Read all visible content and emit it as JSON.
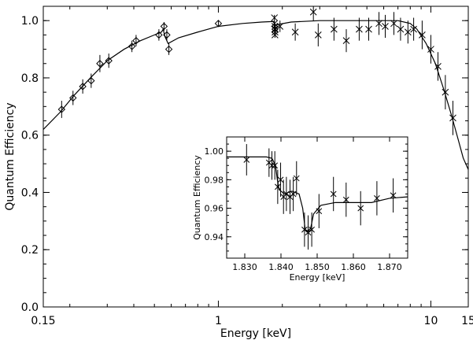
{
  "chart_data": [
    {
      "type": "scatter",
      "id": "main",
      "xlabel": "Energy [keV]",
      "ylabel": "Quantum Efficiency",
      "xscale": "log",
      "xlim": [
        0.15,
        15
      ],
      "ylim": [
        0.0,
        1.05
      ],
      "x_ticks": [
        0.15,
        1,
        10,
        15
      ],
      "x_tick_labels": [
        "0.15",
        "1",
        "10",
        "15"
      ],
      "y_ticks": [
        0.0,
        0.2,
        0.4,
        0.6,
        0.8,
        1.0
      ],
      "y_tick_labels": [
        "0.0",
        "0.2",
        "0.4",
        "0.6",
        "0.8",
        "1.0"
      ],
      "series": [
        {
          "marker": "diamond",
          "points": [
            {
              "x": 0.183,
              "y": 0.69,
              "err": 0.03
            },
            {
              "x": 0.207,
              "y": 0.73,
              "err": 0.025
            },
            {
              "x": 0.23,
              "y": 0.77,
              "err": 0.025
            },
            {
              "x": 0.252,
              "y": 0.79,
              "err": 0.025
            },
            {
              "x": 0.277,
              "y": 0.85,
              "err": 0.03
            },
            {
              "x": 0.305,
              "y": 0.86,
              "err": 0.025
            },
            {
              "x": 0.392,
              "y": 0.91,
              "err": 0.02
            },
            {
              "x": 0.41,
              "y": 0.93,
              "err": 0.02
            },
            {
              "x": 0.525,
              "y": 0.95,
              "err": 0.02
            },
            {
              "x": 0.555,
              "y": 0.98,
              "err": 0.015
            },
            {
              "x": 0.572,
              "y": 0.95,
              "err": 0.02
            },
            {
              "x": 0.585,
              "y": 0.9,
              "err": 0.02
            },
            {
              "x": 1.0,
              "y": 0.99,
              "err": 0.01
            }
          ]
        },
        {
          "marker": "x",
          "points": [
            {
              "x": 1.836,
              "y": 1.01,
              "err": 0.01
            },
            {
              "x": 1.838,
              "y": 0.99,
              "err": 0.01
            },
            {
              "x": 1.84,
              "y": 0.97,
              "err": 0.01
            },
            {
              "x": 1.842,
              "y": 0.97,
              "err": 0.01
            },
            {
              "x": 1.844,
              "y": 0.98,
              "err": 0.01
            },
            {
              "x": 1.846,
              "y": 0.95,
              "err": 0.01
            },
            {
              "x": 1.848,
              "y": 0.96,
              "err": 0.01
            },
            {
              "x": 1.85,
              "y": 0.97,
              "err": 0.01
            },
            {
              "x": 1.855,
              "y": 0.97,
              "err": 0.01
            },
            {
              "x": 1.95,
              "y": 0.98,
              "err": 0.02
            },
            {
              "x": 2.3,
              "y": 0.96,
              "err": 0.03
            },
            {
              "x": 2.8,
              "y": 1.03,
              "err": 0.03
            },
            {
              "x": 2.95,
              "y": 0.95,
              "err": 0.04
            },
            {
              "x": 3.5,
              "y": 0.97,
              "err": 0.04
            },
            {
              "x": 4.0,
              "y": 0.93,
              "err": 0.04
            },
            {
              "x": 4.6,
              "y": 0.97,
              "err": 0.04
            },
            {
              "x": 5.1,
              "y": 0.97,
              "err": 0.04
            },
            {
              "x": 5.7,
              "y": 0.99,
              "err": 0.04
            },
            {
              "x": 6.1,
              "y": 0.98,
              "err": 0.04
            },
            {
              "x": 6.7,
              "y": 0.99,
              "err": 0.04
            },
            {
              "x": 7.2,
              "y": 0.97,
              "err": 0.04
            },
            {
              "x": 7.8,
              "y": 0.96,
              "err": 0.04
            },
            {
              "x": 8.3,
              "y": 0.97,
              "err": 0.04
            },
            {
              "x": 9.1,
              "y": 0.95,
              "err": 0.05
            },
            {
              "x": 10.0,
              "y": 0.9,
              "err": 0.05
            },
            {
              "x": 10.8,
              "y": 0.84,
              "err": 0.05
            },
            {
              "x": 11.7,
              "y": 0.75,
              "err": 0.06
            },
            {
              "x": 12.7,
              "y": 0.66,
              "err": 0.06
            }
          ]
        }
      ],
      "model_curve": [
        {
          "x": 0.15,
          "y": 0.62
        },
        {
          "x": 0.18,
          "y": 0.68
        },
        {
          "x": 0.21,
          "y": 0.74
        },
        {
          "x": 0.25,
          "y": 0.8
        },
        {
          "x": 0.3,
          "y": 0.86
        },
        {
          "x": 0.36,
          "y": 0.9
        },
        {
          "x": 0.43,
          "y": 0.93
        },
        {
          "x": 0.5,
          "y": 0.95
        },
        {
          "x": 0.54,
          "y": 0.96
        },
        {
          "x": 0.55,
          "y": 0.97
        },
        {
          "x": 0.56,
          "y": 0.945
        },
        {
          "x": 0.58,
          "y": 0.92
        },
        {
          "x": 0.65,
          "y": 0.94
        },
        {
          "x": 0.8,
          "y": 0.96
        },
        {
          "x": 1.0,
          "y": 0.98
        },
        {
          "x": 1.3,
          "y": 0.99
        },
        {
          "x": 1.6,
          "y": 0.995
        },
        {
          "x": 1.83,
          "y": 0.997
        },
        {
          "x": 1.84,
          "y": 0.975
        },
        {
          "x": 1.86,
          "y": 0.985
        },
        {
          "x": 2.2,
          "y": 0.995
        },
        {
          "x": 3.0,
          "y": 1.0
        },
        {
          "x": 5.0,
          "y": 1.0
        },
        {
          "x": 7.0,
          "y": 1.0
        },
        {
          "x": 8.0,
          "y": 0.99
        },
        {
          "x": 8.6,
          "y": 0.97
        },
        {
          "x": 9.5,
          "y": 0.92
        },
        {
          "x": 10.5,
          "y": 0.85
        },
        {
          "x": 11.5,
          "y": 0.76
        },
        {
          "x": 12.5,
          "y": 0.67
        },
        {
          "x": 13.5,
          "y": 0.58
        },
        {
          "x": 14.2,
          "y": 0.52
        },
        {
          "x": 15.0,
          "y": 0.48
        }
      ]
    },
    {
      "type": "scatter",
      "id": "inset",
      "xlabel": "Energy [keV]",
      "ylabel": "Quantum Efficiency",
      "xlim": [
        1.825,
        1.875
      ],
      "ylim": [
        0.925,
        1.01
      ],
      "x_ticks": [
        1.83,
        1.84,
        1.85,
        1.86,
        1.87
      ],
      "x_tick_labels": [
        "1.830",
        "1.840",
        "1.850",
        "1.860",
        "1.870"
      ],
      "y_ticks": [
        0.94,
        0.96,
        0.98,
        1.0
      ],
      "y_tick_labels": [
        "0.94",
        "0.96",
        "0.98",
        "1.00"
      ],
      "series": [
        {
          "marker": "x",
          "points": [
            {
              "x": 1.8305,
              "y": 0.994,
              "err": 0.011
            },
            {
              "x": 1.8367,
              "y": 0.992,
              "err": 0.01
            },
            {
              "x": 1.8375,
              "y": 0.99,
              "err": 0.01
            },
            {
              "x": 1.8383,
              "y": 0.99,
              "err": 0.01
            },
            {
              "x": 1.8391,
              "y": 0.975,
              "err": 0.012
            },
            {
              "x": 1.8399,
              "y": 0.98,
              "err": 0.012
            },
            {
              "x": 1.8407,
              "y": 0.968,
              "err": 0.012
            },
            {
              "x": 1.8415,
              "y": 0.97,
              "err": 0.012
            },
            {
              "x": 1.8425,
              "y": 0.968,
              "err": 0.012
            },
            {
              "x": 1.8434,
              "y": 0.97,
              "err": 0.012
            },
            {
              "x": 1.8443,
              "y": 0.981,
              "err": 0.012
            },
            {
              "x": 1.8465,
              "y": 0.945,
              "err": 0.012
            },
            {
              "x": 1.8475,
              "y": 0.943,
              "err": 0.012
            },
            {
              "x": 1.8485,
              "y": 0.945,
              "err": 0.012
            },
            {
              "x": 1.8505,
              "y": 0.958,
              "err": 0.012
            },
            {
              "x": 1.8545,
              "y": 0.97,
              "err": 0.012
            },
            {
              "x": 1.858,
              "y": 0.966,
              "err": 0.012
            },
            {
              "x": 1.862,
              "y": 0.96,
              "err": 0.012
            },
            {
              "x": 1.8665,
              "y": 0.967,
              "err": 0.012
            },
            {
              "x": 1.871,
              "y": 0.969,
              "err": 0.012
            }
          ]
        }
      ],
      "model_curve": [
        {
          "x": 1.825,
          "y": 0.996
        },
        {
          "x": 1.836,
          "y": 0.996
        },
        {
          "x": 1.8375,
          "y": 0.995
        },
        {
          "x": 1.8385,
          "y": 0.99
        },
        {
          "x": 1.839,
          "y": 0.98
        },
        {
          "x": 1.8395,
          "y": 0.973
        },
        {
          "x": 1.841,
          "y": 0.97
        },
        {
          "x": 1.843,
          "y": 0.972
        },
        {
          "x": 1.845,
          "y": 0.97
        },
        {
          "x": 1.846,
          "y": 0.96
        },
        {
          "x": 1.8467,
          "y": 0.945
        },
        {
          "x": 1.8475,
          "y": 0.944
        },
        {
          "x": 1.8482,
          "y": 0.946
        },
        {
          "x": 1.849,
          "y": 0.956
        },
        {
          "x": 1.851,
          "y": 0.962
        },
        {
          "x": 1.855,
          "y": 0.964
        },
        {
          "x": 1.865,
          "y": 0.964
        },
        {
          "x": 1.87,
          "y": 0.967
        },
        {
          "x": 1.875,
          "y": 0.968
        }
      ]
    }
  ]
}
